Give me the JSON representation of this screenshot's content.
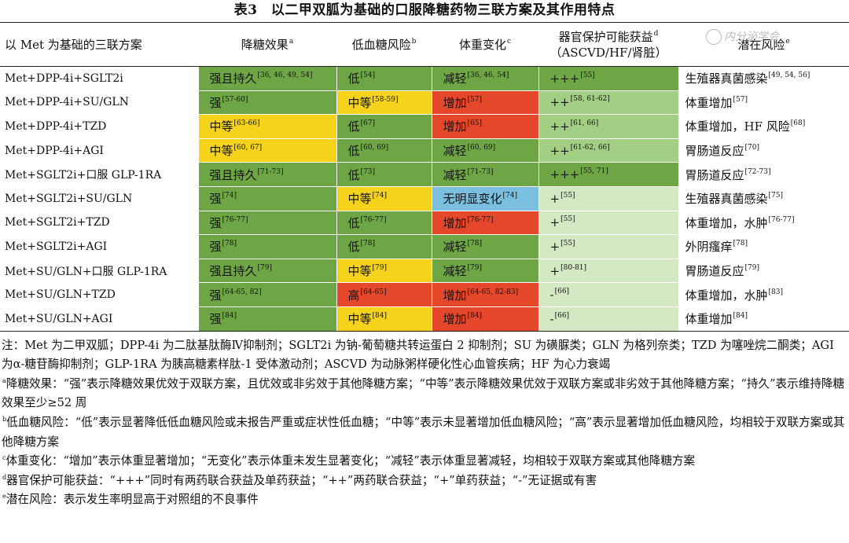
{
  "caption": "表3　以二甲双胍为基础的口服降糖药物三联方案及其作用特点",
  "watermark": "内分泌学会",
  "headers": {
    "regimen": "以 Met 为基础的三联方案",
    "glucose": "降糖效果",
    "glucose_sup": "a",
    "hypo": "低血糖风险",
    "hypo_sup": "b",
    "weight": "体重变化",
    "weight_sup": "c",
    "organ_l1": "器官保护可能获益",
    "organ_sup": "d",
    "organ_l2": "（ASCVD/HF/肾脏）",
    "risk": "潜在风险",
    "risk_sup": "e"
  },
  "colors": {
    "green": "#6ea645",
    "yellow": "#f5d21b",
    "red": "#e5472a",
    "blue": "#7bbfe0",
    "light_green": "#a3cf84",
    "very_light_green": "#d4e8c4"
  },
  "rows": [
    {
      "name": "Met+DPP-4i+SGLT2i",
      "gl": "强且持久",
      "gl_ref": "[36, 46, 49, 54]",
      "gl_c": "g",
      "hy": "低",
      "hy_ref": "[54]",
      "hy_c": "g",
      "wt": "减轻",
      "wt_ref": "[36, 46, 54]",
      "wt_c": "g",
      "or": "+++",
      "or_ref": "[55]",
      "or_c": "g",
      "rk": "生殖器真菌感染",
      "rk_ref": "[49, 54, 56]"
    },
    {
      "name": "Met+DPP-4i+SU/GLN",
      "gl": "强",
      "gl_ref": "[57-60]",
      "gl_c": "g",
      "hy": "中等",
      "hy_ref": "[58-59]",
      "hy_c": "y",
      "wt": "增加",
      "wt_ref": "[57]",
      "wt_c": "r",
      "or": "++",
      "or_ref": "[58, 61-62]",
      "or_c": "lg",
      "rk": "体重增加",
      "rk_ref": "[57]"
    },
    {
      "name": "Met+DPP-4i+TZD",
      "gl": "中等",
      "gl_ref": "[63-66]",
      "gl_c": "y",
      "hy": "低",
      "hy_ref": "[67]",
      "hy_c": "g",
      "wt": "增加",
      "wt_ref": "[65]",
      "wt_c": "r",
      "or": "++",
      "or_ref": "[61, 66]",
      "or_c": "lg",
      "rk": "体重增加，HF 风险",
      "rk_ref": "[68]"
    },
    {
      "name": "Met+DPP-4i+AGI",
      "gl": "中等",
      "gl_ref": "[60, 67]",
      "gl_c": "y",
      "hy": "低",
      "hy_ref": "[60, 69]",
      "hy_c": "g",
      "wt": "减轻",
      "wt_ref": "[60, 69]",
      "wt_c": "g",
      "or": "++",
      "or_ref": "[61-62, 66]",
      "or_c": "lg",
      "rk": "胃肠道反应",
      "rk_ref": "[70]"
    },
    {
      "name": "Met+SGLT2i+口服 GLP-1RA",
      "gl": "强且持久",
      "gl_ref": "[71-73]",
      "gl_c": "g",
      "hy": "低",
      "hy_ref": "[73]",
      "hy_c": "g",
      "wt": "减轻",
      "wt_ref": "[71-73]",
      "wt_c": "g",
      "or": "+++",
      "or_ref": "[55, 71]",
      "or_c": "g",
      "rk": "胃肠道反应",
      "rk_ref": "[72-73]"
    },
    {
      "name": "Met+SGLT2i+SU/GLN",
      "gl": "强",
      "gl_ref": "[74]",
      "gl_c": "g",
      "hy": "中等",
      "hy_ref": "[74]",
      "hy_c": "y",
      "wt": "无明显变化",
      "wt_ref": "[74]",
      "wt_c": "b",
      "or": "+",
      "or_ref": "[55]",
      "or_c": "vg",
      "rk": "生殖器真菌感染",
      "rk_ref": "[75]"
    },
    {
      "name": "Met+SGLT2i+TZD",
      "gl": "强",
      "gl_ref": "[76-77]",
      "gl_c": "g",
      "hy": "低",
      "hy_ref": "[76-77]",
      "hy_c": "g",
      "wt": "增加",
      "wt_ref": "[76-77]",
      "wt_c": "r",
      "or": "+",
      "or_ref": "[55]",
      "or_c": "vg",
      "rk": "体重增加，水肿",
      "rk_ref": "[76-77]"
    },
    {
      "name": "Met+SGLT2i+AGI",
      "gl": "强",
      "gl_ref": "[78]",
      "gl_c": "g",
      "hy": "低",
      "hy_ref": "[78]",
      "hy_c": "g",
      "wt": "减轻",
      "wt_ref": "[78]",
      "wt_c": "g",
      "or": "+",
      "or_ref": "[55]",
      "or_c": "vg",
      "rk": "外阴瘙痒",
      "rk_ref": "[78]"
    },
    {
      "name": "Met+SU/GLN+口服 GLP-1RA",
      "gl": "强且持久",
      "gl_ref": "[79]",
      "gl_c": "g",
      "hy": "中等",
      "hy_ref": "[79]",
      "hy_c": "y",
      "wt": "减轻",
      "wt_ref": "[79]",
      "wt_c": "g",
      "or": "+",
      "or_ref": "[80-81]",
      "or_c": "vg",
      "rk": "胃肠道反应",
      "rk_ref": "[79]"
    },
    {
      "name": "Met+SU/GLN+TZD",
      "gl": "强",
      "gl_ref": "[64-65, 82]",
      "gl_c": "g",
      "hy": "高",
      "hy_ref": "[64-65]",
      "hy_c": "r",
      "wt": "增加",
      "wt_ref": "[64-65, 82-83]",
      "wt_c": "r",
      "or": "-",
      "or_ref": "[66]",
      "or_c": "vg",
      "rk": "体重增加，水肿",
      "rk_ref": "[83]"
    },
    {
      "name": "Met+SU/GLN+AGI",
      "gl": "强",
      "gl_ref": "[84]",
      "gl_c": "g",
      "hy": "中等",
      "hy_ref": "[84]",
      "hy_c": "y",
      "wt": "增加",
      "wt_ref": "[84]",
      "wt_c": "r",
      "or": "-",
      "or_ref": "[66]",
      "or_c": "vg",
      "rk": "体重增加",
      "rk_ref": "[84]"
    }
  ],
  "notes": {
    "abbr": "注：Met 为二甲双胍；DPP-4i 为二肽基肽酶Ⅳ抑制剂；SGLT2i 为钠-葡萄糖共转运蛋白 2 抑制剂；SU 为磺脲类；GLN 为格列奈类；TZD 为噻唑烷二酮类；AGI 为α-糖苷酶抑制剂；GLP-1RA 为胰高糖素样肽-1 受体激动剂；ASCVD 为动脉粥样硬化性心血管疾病；HF 为心力衰竭",
    "a_mark": "a",
    "a": "降糖效果：“强”表示降糖效果优效于双联方案，且优效或非劣效于其他降糖方案；“中等”表示降糖效果优效于双联方案或非劣效于其他降糖方案；“持久”表示维持降糖效果至少≥52 周",
    "b_mark": "b",
    "b": "低血糖风险：“低”表示显著降低低血糖风险或未报告严重或症状性低血糖；“中等”表示未显著增加低血糖风险；“高”表示显著增加低血糖风险，均相较于双联方案或其他降糖方案",
    "c_mark": "c",
    "c": "体重变化：“增加”表示体重显著增加；“无变化”表示体重未发生显著变化；“减轻”表示体重显著减轻，均相较于双联方案或其他降糖方案",
    "d_mark": "d",
    "d": "器官保护可能获益：“+++”同时有两药联合获益及单药获益；“++”两药联合获益；“+”单药获益；“-”无证据或有害",
    "e_mark": "e",
    "e": "潜在风险：表示发生率明显高于对照组的不良事件"
  }
}
